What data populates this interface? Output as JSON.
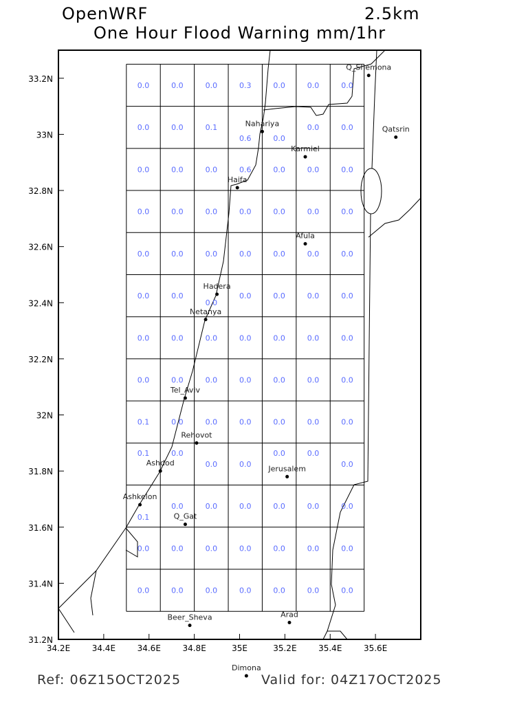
{
  "header": {
    "model": "OpenWRF",
    "resolution": "2.5km",
    "title": "One Hour Flood Warning mm/1hr"
  },
  "footer": {
    "ref": "Ref: 06Z15OCT2025",
    "valid": "Valid for: 04Z17OCT2025"
  },
  "colors": {
    "value_text": "#5a6cff",
    "grid": "#000000"
  },
  "chart_data": {
    "type": "table",
    "xlim": [
      34.2,
      35.8
    ],
    "ylim": [
      31.2,
      33.3
    ],
    "x_ticks": [
      "34.2E",
      "34.4E",
      "34.6E",
      "34.8E",
      "35E",
      "35.2E",
      "35.4E",
      "35.6E"
    ],
    "x_tick_values": [
      34.2,
      34.4,
      34.6,
      34.8,
      35.0,
      35.2,
      35.4,
      35.6
    ],
    "y_ticks": [
      "31.2N",
      "31.4N",
      "31.6N",
      "31.8N",
      "32N",
      "32.2N",
      "32.4N",
      "32.6N",
      "32.8N",
      "33N",
      "33.2N"
    ],
    "y_tick_values": [
      31.2,
      31.4,
      31.6,
      31.8,
      32.0,
      32.2,
      32.4,
      32.6,
      32.8,
      33.0,
      33.2
    ],
    "grid_lon": [
      34.5,
      35.55
    ],
    "grid_lat": [
      31.3,
      33.25
    ],
    "values": [
      [
        "0.0",
        "0.0",
        "0.0",
        "0.3",
        "0.0",
        "0.0",
        "0.0"
      ],
      [
        "0.0",
        "0.0",
        "0.1",
        "0.6",
        "0.0",
        "0.0",
        "0.0"
      ],
      [
        "0.0",
        "0.0",
        "0.0",
        "0.6",
        "0.0",
        "0.0",
        "0.0"
      ],
      [
        "0.0",
        "0.0",
        "0.0",
        "0.0",
        "0.0",
        "0.0",
        "0.0"
      ],
      [
        "0.0",
        "0.0",
        "0.0",
        "0.0",
        "0.0",
        "0.0",
        "0.0"
      ],
      [
        "0.0",
        "0.0",
        "0.0",
        "0.0",
        "0.0",
        "0.0",
        "0.0"
      ],
      [
        "0.0",
        "0.0",
        "0.0",
        "0.0",
        "0.0",
        "0.0",
        "0.0"
      ],
      [
        "0.0",
        "0.0",
        "0.0",
        "0.0",
        "0.0",
        "0.0",
        "0.0"
      ],
      [
        "0.1",
        "0.0",
        "0.0",
        "0.0",
        "0.0",
        "0.0",
        "0.0"
      ],
      [
        "0.1",
        "0.0",
        "0.0",
        "0.0",
        "0.0",
        "0.0",
        "0.0"
      ],
      [
        "0.1",
        "0.0",
        "0.0",
        "0.0",
        "0.0",
        "0.0",
        "0.0"
      ],
      [
        "0.0",
        "0.0",
        "0.0",
        "0.0",
        "0.0",
        "0.0",
        "0.0"
      ],
      [
        "0.0",
        "0.0",
        "0.0",
        "0.0",
        "0.0",
        "0.0",
        "0.0"
      ]
    ],
    "cities": [
      {
        "name": "Q_Shemona",
        "lon": 35.57,
        "lat": 33.21
      },
      {
        "name": "Qatsrin",
        "lon": 35.69,
        "lat": 32.99
      },
      {
        "name": "Nahariya",
        "lon": 35.1,
        "lat": 33.01
      },
      {
        "name": "Karmiel",
        "lon": 35.29,
        "lat": 32.92
      },
      {
        "name": "Haifa",
        "lon": 34.99,
        "lat": 32.81
      },
      {
        "name": "Afula",
        "lon": 35.29,
        "lat": 32.61
      },
      {
        "name": "Hadera",
        "lon": 34.9,
        "lat": 32.43
      },
      {
        "name": "Netanya",
        "lon": 34.85,
        "lat": 32.34
      },
      {
        "name": "Tel_Aviv",
        "lon": 34.76,
        "lat": 32.06
      },
      {
        "name": "Rehovot",
        "lon": 34.81,
        "lat": 31.9
      },
      {
        "name": "Ashdod",
        "lon": 34.65,
        "lat": 31.8
      },
      {
        "name": "Jerusalem",
        "lon": 35.21,
        "lat": 31.78
      },
      {
        "name": "Ashkelon",
        "lon": 34.56,
        "lat": 31.68
      },
      {
        "name": "Q_Gat",
        "lon": 34.76,
        "lat": 31.61
      },
      {
        "name": "Beer_Sheva",
        "lon": 34.78,
        "lat": 31.25
      },
      {
        "name": "Arad",
        "lon": 35.22,
        "lat": 31.26
      },
      {
        "name": "Dimona",
        "lon": 35.03,
        "lat": 31.07
      }
    ]
  }
}
